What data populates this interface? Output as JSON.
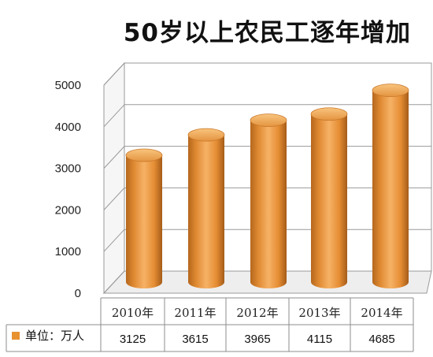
{
  "chart_data": {
    "type": "bar",
    "title": "50岁以上农民工逐年增加",
    "categories": [
      "2010年",
      "2011年",
      "2012年",
      "2013年",
      "2014年"
    ],
    "series": [
      {
        "name": "单位：万人",
        "values": [
          3125,
          3615,
          3965,
          4115,
          4685
        ]
      }
    ],
    "value_labels": [
      "3125",
      "3615",
      "3965",
      "4115",
      "4685"
    ],
    "y_ticks": [
      "0",
      "1000",
      "2000",
      "3000",
      "4000",
      "5000"
    ],
    "ylim": [
      0,
      5000
    ],
    "grid": true,
    "data_table": true,
    "legend_position": "data-table",
    "bar_color": "#E8912F"
  }
}
